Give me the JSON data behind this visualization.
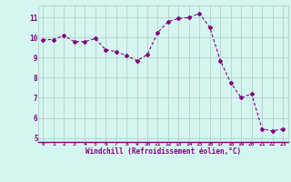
{
  "x": [
    0,
    1,
    2,
    3,
    4,
    5,
    6,
    7,
    8,
    9,
    10,
    11,
    12,
    13,
    14,
    15,
    16,
    17,
    18,
    19,
    20,
    21,
    22,
    23
  ],
  "y": [
    9.9,
    9.9,
    10.1,
    9.8,
    9.8,
    9.95,
    9.4,
    9.3,
    9.1,
    8.85,
    9.15,
    10.25,
    10.8,
    10.95,
    11.0,
    11.2,
    10.5,
    8.85,
    7.75,
    7.0,
    7.2,
    5.45,
    5.35,
    5.45
  ],
  "line_color": "#800080",
  "marker": "D",
  "marker_size": 2,
  "xlabel": "Windchill (Refroidissement éolien,°C)",
  "xlim": [
    -0.5,
    23.5
  ],
  "ylim": [
    4.8,
    11.6
  ],
  "yticks": [
    5,
    6,
    7,
    8,
    9,
    10,
    11
  ],
  "xticks": [
    0,
    1,
    2,
    3,
    4,
    5,
    6,
    7,
    8,
    9,
    10,
    11,
    12,
    13,
    14,
    15,
    16,
    17,
    18,
    19,
    20,
    21,
    22,
    23
  ],
  "bg_color": "#d5f5f0",
  "grid_color": "#b0c8c4",
  "tick_color": "#800080",
  "label_color": "#800080",
  "line_width": 0.8,
  "xlabel_fontsize": 5.5,
  "xtick_fontsize": 4.5,
  "ytick_fontsize": 5.5
}
